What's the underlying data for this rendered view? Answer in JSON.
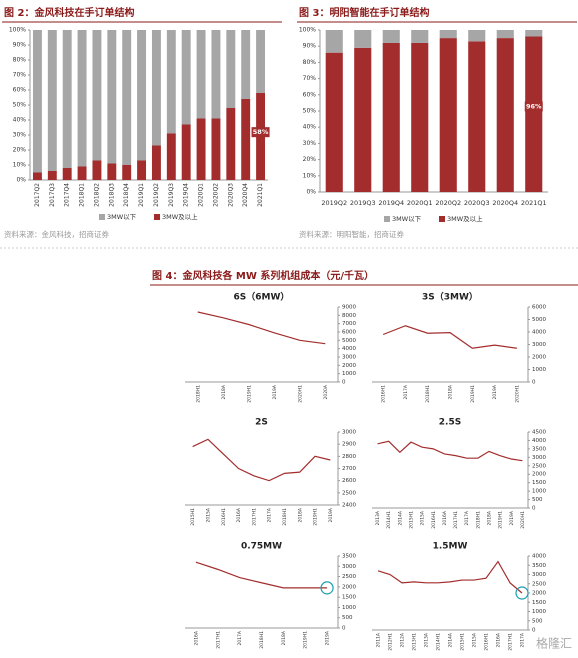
{
  "chart_data": [
    {
      "type": "bar",
      "stacked": true,
      "title": "图 2：金风科技在手订单结构",
      "source": "资料来源：金风科技，招商证券",
      "categories": [
        "2017Q2",
        "2017Q3",
        "2017Q4",
        "2018Q1",
        "2018Q2",
        "2018Q3",
        "2018Q4",
        "2019Q1",
        "2019Q2",
        "2019Q3",
        "2019Q4",
        "2020Q1",
        "2020Q2",
        "2020Q3",
        "2020Q4",
        "2021Q1"
      ],
      "series": [
        {
          "name": "3MW以下",
          "color": "#a6a6a6",
          "values": [
            95,
            94,
            92,
            91,
            87,
            89,
            90,
            87,
            77,
            69,
            63,
            59,
            59,
            52,
            46,
            42
          ]
        },
        {
          "name": "3MW及以上",
          "color": "#a32d2d",
          "values": [
            5,
            6,
            8,
            9,
            13,
            11,
            10,
            13,
            23,
            31,
            37,
            41,
            41,
            48,
            54,
            58
          ],
          "value_labels": [
            null,
            null,
            null,
            null,
            null,
            null,
            null,
            null,
            null,
            null,
            null,
            null,
            null,
            null,
            null,
            "58%"
          ]
        }
      ],
      "ylim": [
        0,
        100
      ],
      "yticks": [
        {
          "value": 0,
          "label": "0%"
        },
        {
          "value": 10,
          "label": "10%"
        },
        {
          "value": 20,
          "label": "20%"
        },
        {
          "value": 30,
          "label": "30%"
        },
        {
          "value": 40,
          "label": "40%"
        },
        {
          "value": 50,
          "label": "50%"
        },
        {
          "value": 60,
          "label": "60%"
        },
        {
          "value": 70,
          "label": "70%"
        },
        {
          "value": 80,
          "label": "80%"
        },
        {
          "value": 90,
          "label": "90%"
        },
        {
          "value": 100,
          "label": "100%"
        }
      ]
    },
    {
      "type": "bar",
      "stacked": true,
      "title": "图 3：明阳智能在手订单结构",
      "source": "资料来源：明阳智能，招商证券",
      "categories": [
        "2019Q2",
        "2019Q3",
        "2019Q4",
        "2020Q1",
        "2020Q2",
        "2020Q3",
        "2020Q4",
        "2021Q1"
      ],
      "series": [
        {
          "name": "3MW以下",
          "color": "#a6a6a6",
          "values": [
            14,
            11,
            8,
            8,
            5,
            7,
            5,
            4
          ]
        },
        {
          "name": "3MW及以上",
          "color": "#a32d2d",
          "values": [
            86,
            89,
            92,
            92,
            95,
            93,
            95,
            96
          ],
          "value_labels": [
            null,
            null,
            null,
            null,
            null,
            null,
            null,
            "96%"
          ]
        }
      ],
      "ylim": [
        0,
        100
      ],
      "yticks": [
        {
          "value": 0,
          "label": "0%"
        },
        {
          "value": 10,
          "label": "10%"
        },
        {
          "value": 20,
          "label": "20%"
        },
        {
          "value": 30,
          "label": "30%"
        },
        {
          "value": 40,
          "label": "40%"
        },
        {
          "value": 50,
          "label": "50%"
        },
        {
          "value": 60,
          "label": "60%"
        },
        {
          "value": 70,
          "label": "70%"
        },
        {
          "value": 80,
          "label": "80%"
        },
        {
          "value": 90,
          "label": "90%"
        },
        {
          "value": 100,
          "label": "100%"
        }
      ]
    },
    {
      "type": "line",
      "title": "6S（6MW）",
      "color": "#a32d2d",
      "categories": [
        "2018H1",
        "2018A",
        "2019H1",
        "2019A",
        "2020H1",
        "2020A"
      ],
      "values": [
        8400,
        7700,
        6900,
        5900,
        5000,
        4600
      ],
      "ylim": [
        0,
        9000
      ],
      "yticks": [
        0,
        1000,
        2000,
        3000,
        4000,
        5000,
        6000,
        7000,
        8000,
        9000
      ]
    },
    {
      "type": "line",
      "title": "3S（3MW）",
      "color": "#a32d2d",
      "categories": [
        "2016H1",
        "2017A",
        "2018H1",
        "2018A",
        "2019H1",
        "2019A",
        "2020H1"
      ],
      "values": [
        3800,
        4500,
        3900,
        3950,
        2700,
        2950,
        2700
      ],
      "ylim": [
        0,
        6000
      ],
      "yticks": [
        0,
        1000,
        2000,
        3000,
        4000,
        5000,
        6000
      ]
    },
    {
      "type": "line",
      "title": "2S",
      "color": "#a32d2d",
      "categories": [
        "2015H1",
        "2015A",
        "2016H1",
        "2016A",
        "2017H1",
        "2017A",
        "2018H1",
        "2018A",
        "2019H1",
        "2019A"
      ],
      "values": [
        2880,
        2940,
        2820,
        2700,
        2640,
        2600,
        2660,
        2670,
        2800,
        2770
      ],
      "ylim": [
        2400,
        3000
      ],
      "yticks": [
        2400,
        2500,
        2600,
        2700,
        2800,
        2900,
        3000
      ]
    },
    {
      "type": "line",
      "title": "2.5S",
      "color": "#a32d2d",
      "categories": [
        "2013A",
        "2014H1",
        "2014A",
        "2015H1",
        "2015A",
        "2016H1",
        "2016A",
        "2017H1",
        "2017A",
        "2018H1",
        "2018A",
        "2019H1",
        "2019A",
        "2020H1"
      ],
      "values": [
        3800,
        3950,
        3300,
        3900,
        3600,
        3500,
        3200,
        3100,
        2950,
        2950,
        3350,
        3100,
        2900,
        2800
      ],
      "ylim": [
        0,
        4500
      ],
      "yticks": [
        0,
        500,
        1000,
        1500,
        2000,
        2500,
        3000,
        3500,
        4000,
        4500
      ]
    },
    {
      "type": "line",
      "title": "0.75MW",
      "color": "#a32d2d",
      "categories": [
        "2016A",
        "2017H1",
        "2017A",
        "2018H1",
        "2018A",
        "2019H1",
        "2019A"
      ],
      "values": [
        3200,
        2850,
        2450,
        2200,
        1950,
        1950,
        1950
      ],
      "ylim": [
        0,
        3500
      ],
      "yticks": [
        0,
        500,
        1000,
        1500,
        2000,
        2500,
        3000,
        3500
      ]
    },
    {
      "type": "line",
      "title": "1.5MW",
      "color": "#a32d2d",
      "categories": [
        "2011A",
        "2012H1",
        "2012A",
        "2013H1",
        "2013A",
        "2014H1",
        "2014A",
        "2015H1",
        "2015A",
        "2016H1",
        "2016A",
        "2017H1",
        "2017A"
      ],
      "values": [
        3200,
        3000,
        2550,
        2600,
        2550,
        2550,
        2600,
        2700,
        2700,
        2800,
        3700,
        2550,
        2000
      ],
      "ylim": [
        0,
        4000
      ],
      "yticks": [
        0,
        500,
        1000,
        1500,
        2000,
        2500,
        3000,
        3500,
        4000
      ]
    }
  ],
  "figure_title": "图 4：金风科技各 MW 系列机组成本（元/千瓦）",
  "watermark": "格隆汇"
}
